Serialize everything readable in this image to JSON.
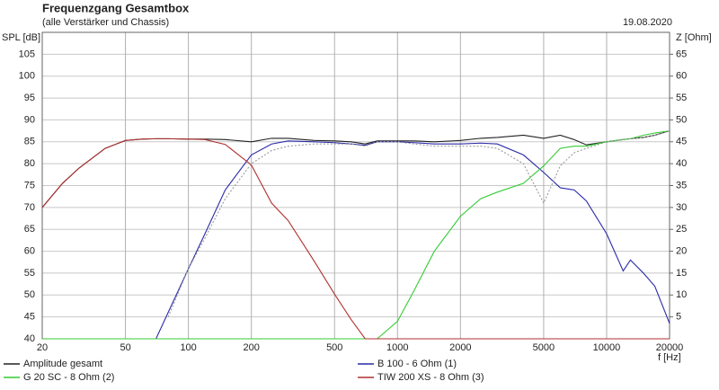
{
  "chart_data": {
    "type": "line",
    "title": "Frequenzgang Gesamtbox",
    "subtitle": "(alle Verstärker und Chassis)",
    "date": "19.08.2020",
    "y_label": "SPL [dB]",
    "y2_label": "Z [Ohm]",
    "x_label": "f [Hz]",
    "xscale": "log",
    "grid": true,
    "legend": "bottom",
    "xlim": [
      20,
      20000
    ],
    "xticks": [
      20,
      50,
      100,
      200,
      500,
      1000,
      2000,
      5000,
      10000,
      20000
    ],
    "ylim": [
      40,
      110
    ],
    "yticks": [
      40,
      45,
      50,
      55,
      60,
      65,
      70,
      75,
      80,
      85,
      90,
      95,
      100,
      105
    ],
    "y2lim": [
      0,
      70
    ],
    "y2ticks": [
      5,
      10,
      15,
      20,
      25,
      30,
      35,
      40,
      45,
      50,
      55,
      60,
      65
    ],
    "x": [
      20,
      25,
      30,
      40,
      50,
      60,
      70,
      80,
      100,
      120,
      150,
      200,
      250,
      300,
      400,
      500,
      600,
      700,
      800,
      1000,
      1200,
      1500,
      2000,
      2500,
      3000,
      4000,
      5000,
      6000,
      7000,
      8000,
      10000,
      12000,
      13000,
      15000,
      17000,
      20000
    ],
    "series": [
      {
        "name": "Amplitude gesamt",
        "color": "#222222",
        "dash": false,
        "values": [
          70,
          75.5,
          79,
          83.5,
          85.3,
          85.6,
          85.7,
          85.7,
          85.6,
          85.6,
          85.5,
          85,
          85.8,
          85.8,
          85.3,
          85.2,
          85,
          84.5,
          85.2,
          85.2,
          85.2,
          85,
          85.3,
          85.8,
          86,
          86.5,
          85.8,
          86.5,
          85.5,
          84.3,
          85,
          85.5,
          85.7,
          86,
          86.5,
          87.5
        ]
      },
      {
        "name": "B 100 - 6 Ohm (1)",
        "color": "#2a2aa8",
        "dash": false,
        "values": [
          40,
          40,
          40,
          40,
          40,
          40,
          40,
          46,
          56,
          64,
          74,
          82,
          84.5,
          85.2,
          85,
          84.8,
          84.5,
          84.2,
          85,
          85,
          84.8,
          84.5,
          84.5,
          84.7,
          84.5,
          82,
          78,
          74.5,
          74,
          71.5,
          64,
          55.5,
          58,
          55,
          52,
          43.5
        ]
      },
      {
        "name": "G 20 SC - 8 Ohm (2)",
        "color": "#33cc33",
        "dash": false,
        "values": [
          40,
          40,
          40,
          40,
          40,
          40,
          40,
          40,
          40,
          40,
          40,
          40,
          40,
          40,
          40,
          40,
          40,
          40,
          40,
          44,
          51,
          60,
          68,
          72,
          73.5,
          75.5,
          79.5,
          83.5,
          84,
          84,
          85,
          85.5,
          85.7,
          86.5,
          87,
          87.5
        ]
      },
      {
        "name": "TIW 200 XS - 8 Ohm (3)",
        "color": "#b03030",
        "dash": false,
        "values": [
          70,
          75.5,
          79,
          83.5,
          85.3,
          85.6,
          85.7,
          85.7,
          85.6,
          85.5,
          84.4,
          79.7,
          71,
          67,
          57.7,
          50.2,
          44.4,
          40,
          40,
          40,
          40,
          40,
          40,
          40,
          40,
          40,
          40,
          40,
          40,
          40,
          40,
          40,
          40,
          40,
          40,
          40
        ]
      },
      {
        "color": "#999999",
        "dash": true,
        "values": [
          null,
          null,
          null,
          null,
          null,
          null,
          null,
          45,
          56,
          63,
          72,
          80,
          83,
          84,
          84.5,
          84.5,
          84.5,
          84,
          85,
          85,
          84.5,
          84,
          84,
          84,
          83.5,
          80,
          71,
          79.5,
          82.5,
          83.5,
          85,
          85.5,
          85.7,
          86,
          86.5,
          87.5
        ]
      }
    ]
  }
}
